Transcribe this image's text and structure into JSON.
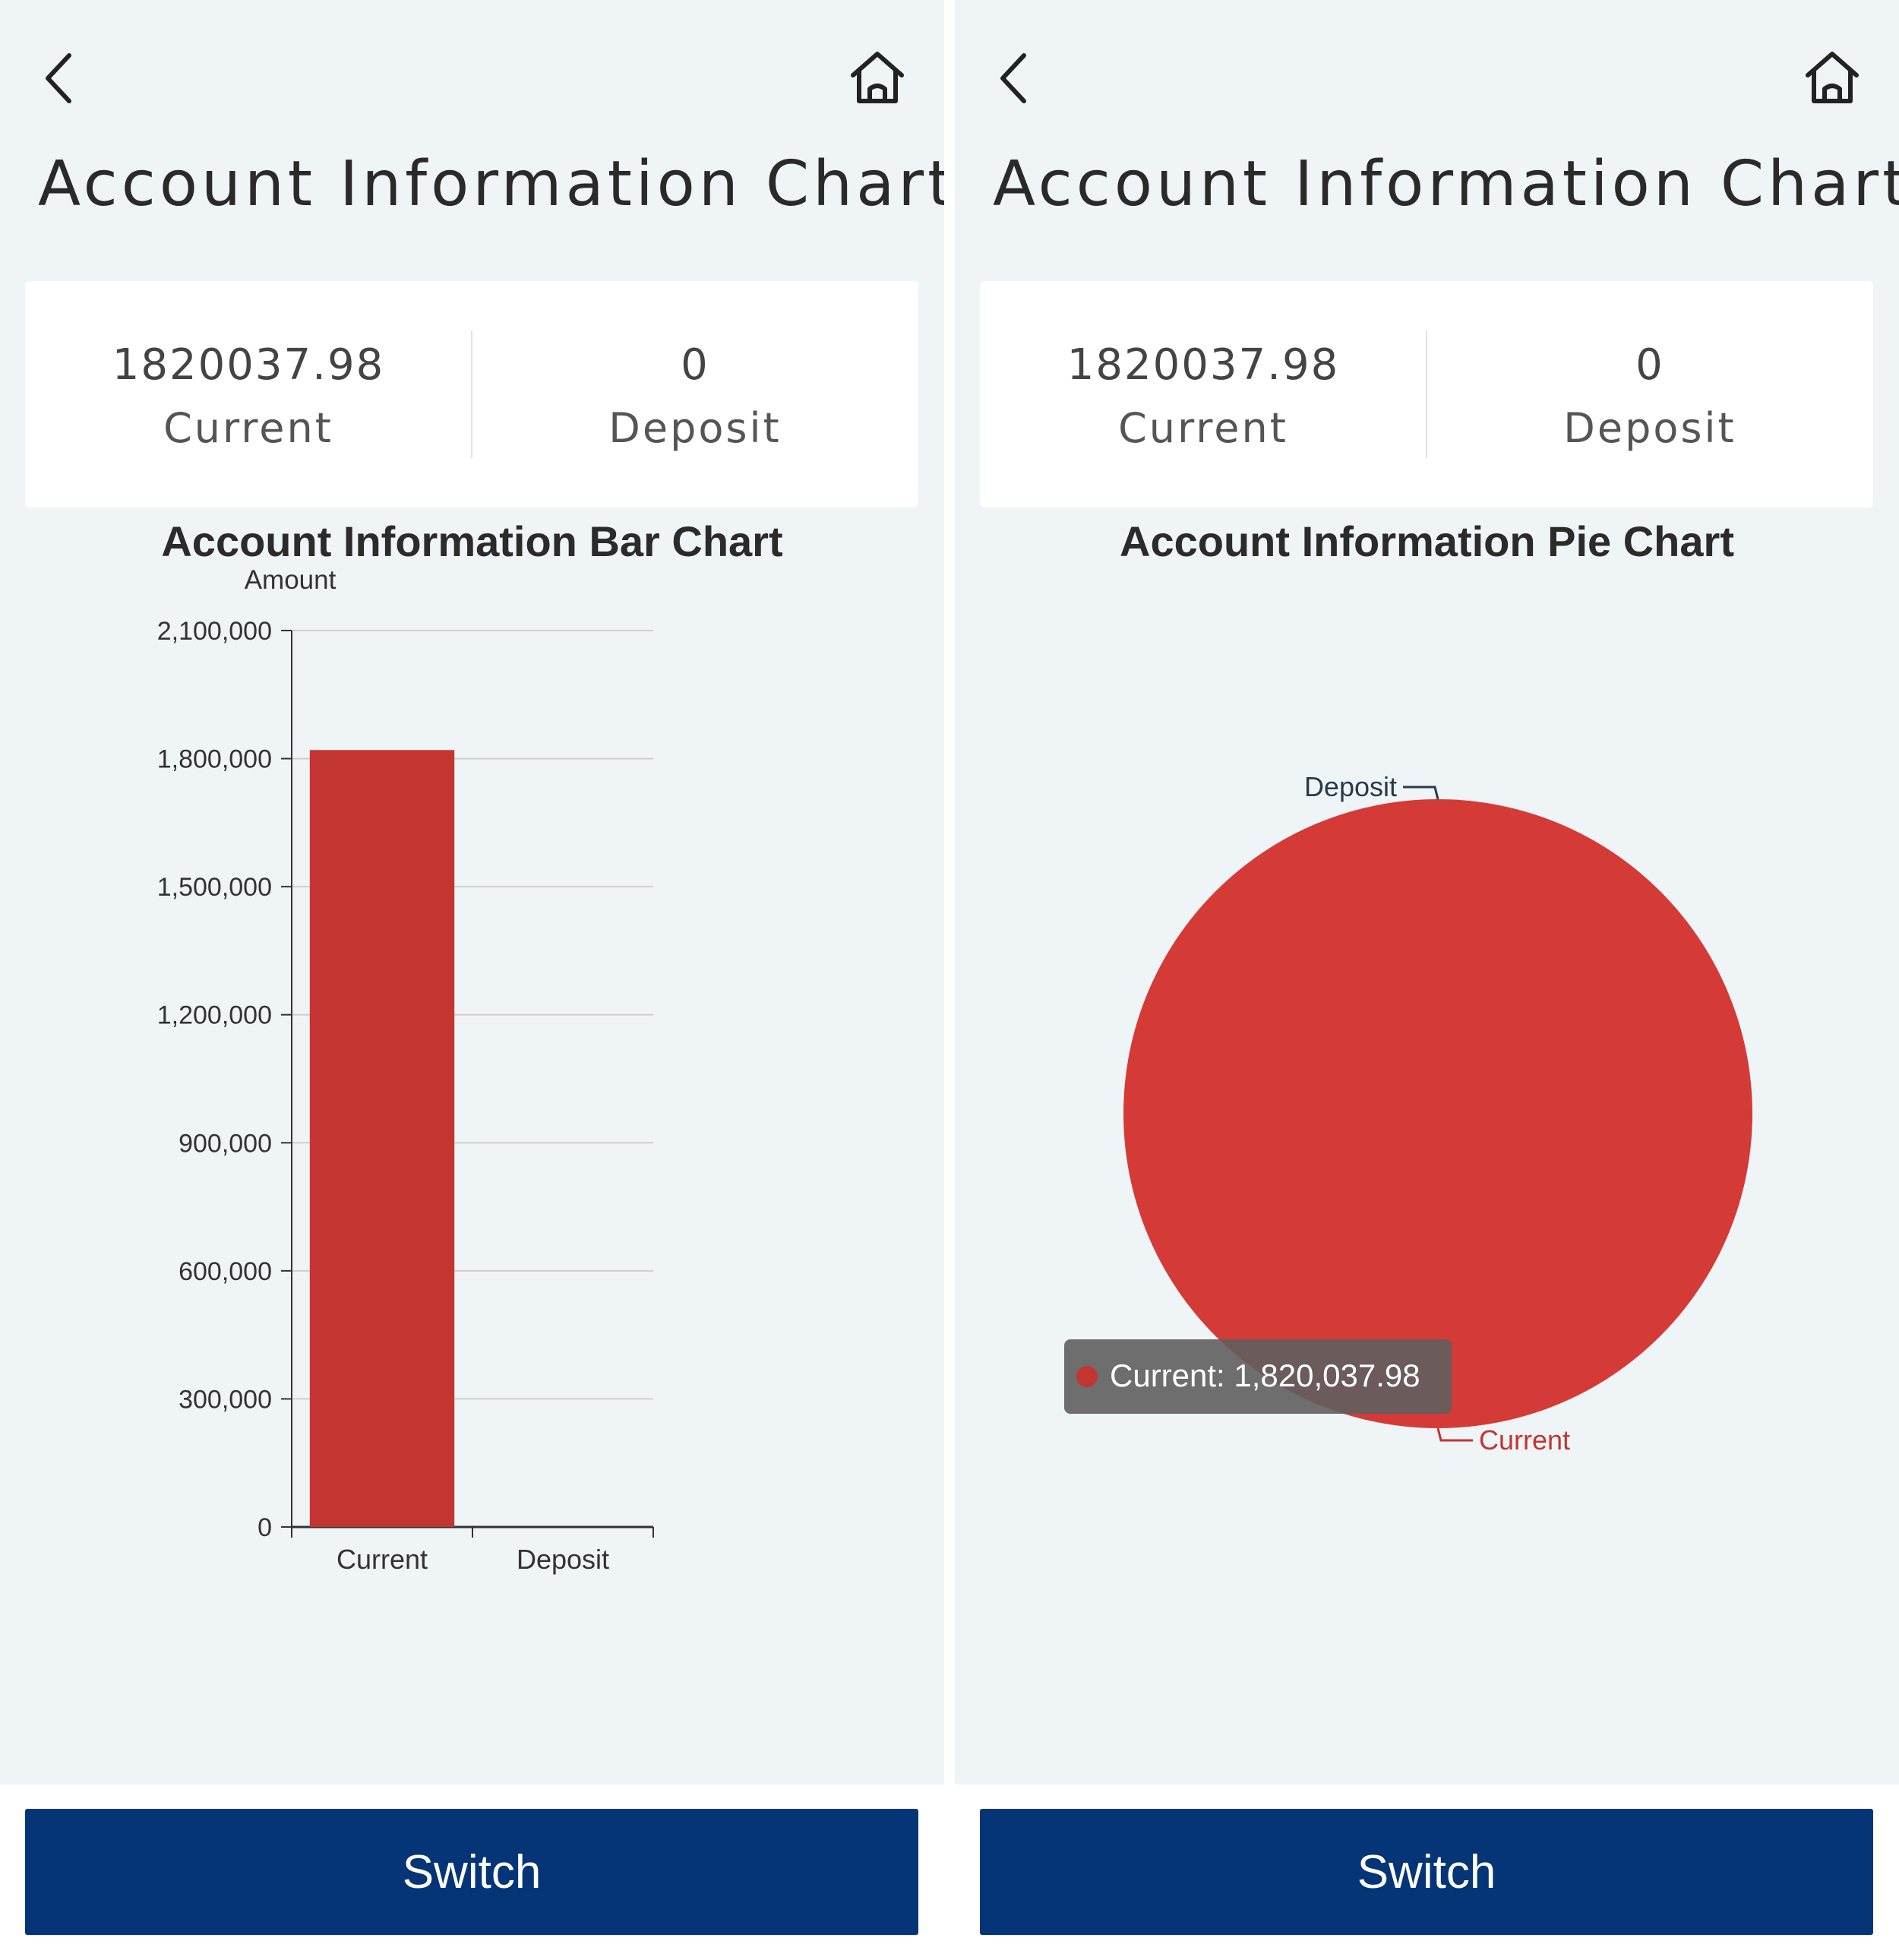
{
  "page": {
    "title": "Account Information Chart",
    "switch_label": "Switch"
  },
  "summary": {
    "current_value": "1820037.98",
    "current_label": "Current",
    "deposit_value": "0",
    "deposit_label": "Deposit"
  },
  "colors": {
    "background": "#eff4f7",
    "bar": "#c23531",
    "pie": "#d43b37",
    "button": "#053577",
    "tooltip_bg": "#5f5f5f"
  },
  "icons": {
    "back": "chevron-left-icon",
    "home": "home-icon"
  },
  "bar_panel": {
    "chart_title": "Account Information Bar Chart"
  },
  "pie_panel": {
    "chart_title": "Account Information Pie Chart",
    "tooltip_text": "Current: 1,820,037.98"
  },
  "chart_data": [
    {
      "type": "bar",
      "title": "Account Information Bar Chart",
      "ylabel": "Amount",
      "xlabel": "",
      "categories": [
        "Current",
        "Deposit"
      ],
      "values": [
        1820037.98,
        0
      ],
      "ylim": [
        0,
        2100000
      ],
      "yticks": [
        0,
        300000,
        600000,
        900000,
        1200000,
        1500000,
        1800000,
        2100000
      ],
      "ytick_labels": [
        "0",
        "300,000",
        "600,000",
        "900,000",
        "1,200,000",
        "1,500,000",
        "1,800,000",
        "2,100,000"
      ],
      "grid": true
    },
    {
      "type": "pie",
      "title": "Account Information Pie Chart",
      "labels": [
        "Current",
        "Deposit"
      ],
      "values": [
        1820037.98,
        0
      ]
    }
  ]
}
